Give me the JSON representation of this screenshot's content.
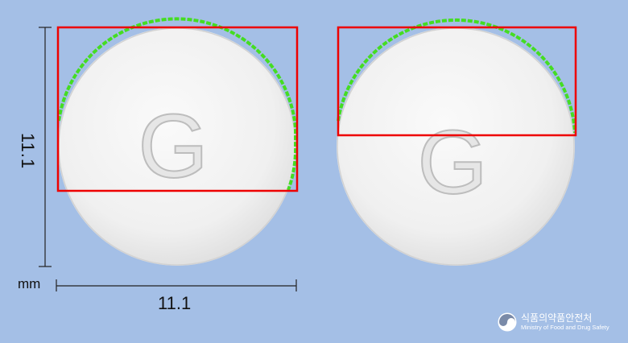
{
  "image": {
    "description_free": true,
    "background": "#a4bfe6",
    "tablet_color": "#efefef",
    "imprint": "G",
    "box_color": "#ff0000",
    "contour_color": "#44dd22"
  },
  "dimensions": {
    "height": "11.1",
    "width": "11.1",
    "unit": "mm"
  },
  "footer": {
    "agency_korean": "식품의약품안전처",
    "agency_english": "Ministry of Food and Drug Safety"
  }
}
